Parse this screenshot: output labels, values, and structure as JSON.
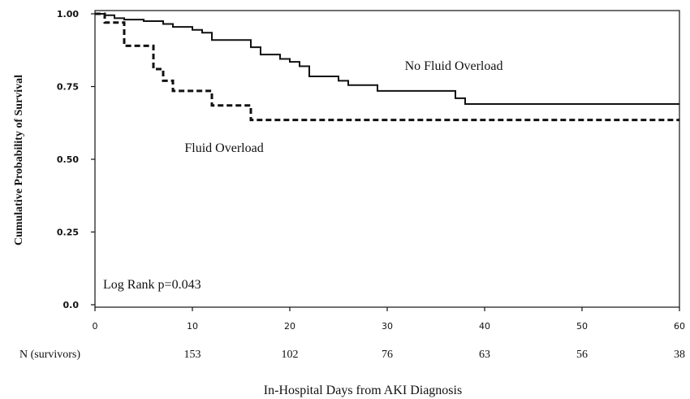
{
  "chart_data": {
    "type": "line",
    "title": "",
    "xlabel": "In-Hospital Days from AKI Diagnosis",
    "ylabel": "Cumulative Probability of Survival",
    "xlim": [
      0,
      60
    ],
    "ylim": [
      0,
      1
    ],
    "x_ticks": [
      0,
      10,
      20,
      30,
      40,
      50,
      60
    ],
    "y_ticks": [
      "0.0",
      "0.25",
      "0.50",
      "0.75",
      "1.00"
    ],
    "grid": false,
    "step": true,
    "series": [
      {
        "name": "No Fluid Overload",
        "style": "solid",
        "x": [
          0,
          1,
          2,
          3,
          5,
          7,
          8,
          10,
          11,
          12,
          16,
          17,
          19,
          20,
          21,
          22,
          25,
          26,
          29,
          37,
          38,
          60
        ],
        "y": [
          1.0,
          0.995,
          0.985,
          0.98,
          0.975,
          0.965,
          0.955,
          0.945,
          0.935,
          0.91,
          0.885,
          0.86,
          0.845,
          0.835,
          0.82,
          0.785,
          0.77,
          0.755,
          0.735,
          0.71,
          0.69,
          0.69
        ]
      },
      {
        "name": "Fluid Overload",
        "style": "dashed",
        "x": [
          0,
          1,
          3,
          6,
          7,
          8,
          12,
          16,
          60
        ],
        "y": [
          1.0,
          0.97,
          0.89,
          0.81,
          0.77,
          0.735,
          0.685,
          0.635,
          0.635
        ]
      }
    ],
    "annotations": [
      {
        "text": "Log Rank p=0.043",
        "x": 1,
        "y": 0.07
      }
    ],
    "risk_table": {
      "label": "N (survivors)",
      "x": [
        10,
        20,
        30,
        40,
        50,
        60
      ],
      "values": [
        "153",
        "102",
        "76",
        "63",
        "56",
        "38"
      ]
    }
  }
}
